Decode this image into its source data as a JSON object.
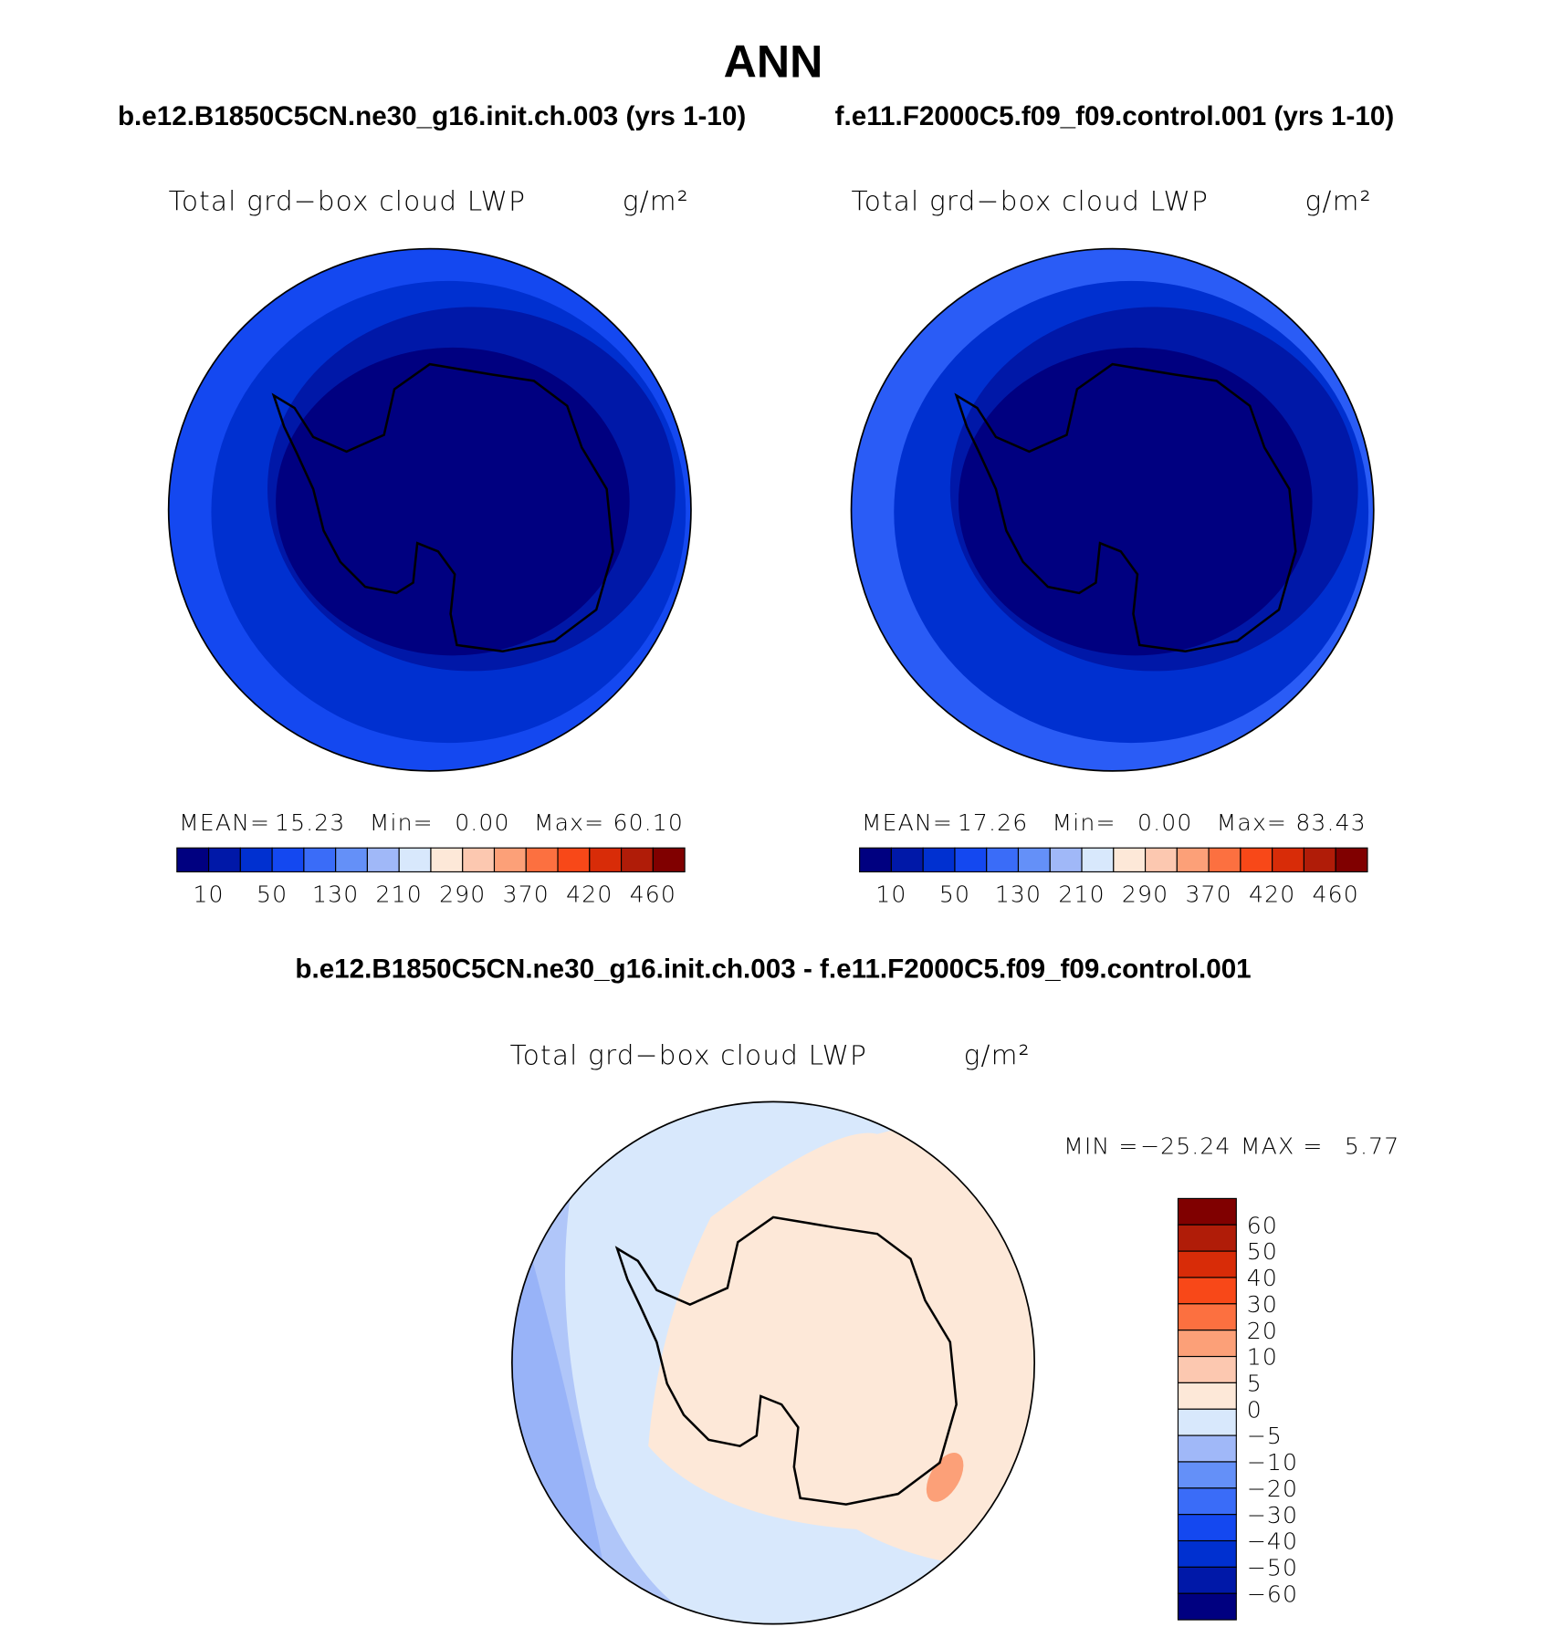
{
  "title": "ANN",
  "panels": [
    {
      "case": "b.e12.B1850C5CN.ne30_g16.init.ch.003 (yrs 1-10)",
      "variable": "Total grd−box cloud LWP",
      "units": "g/m²",
      "stats": {
        "mean_label": "MEAN=",
        "mean": "15.23",
        "min_label": "Min=",
        "min": "0.00",
        "max_label": "Max=",
        "max": "60.10"
      },
      "colorbar_labels": [
        "10",
        "50",
        "130",
        "210",
        "290",
        "370",
        "420",
        "460"
      ]
    },
    {
      "case": "f.e11.F2000C5.f09_f09.control.001 (yrs 1-10)",
      "variable": "Total grd−box cloud LWP",
      "units": "g/m²",
      "stats": {
        "mean_label": "MEAN=",
        "mean": "17.26",
        "min_label": "Min=",
        "min": "0.00",
        "max_label": "Max=",
        "max": "83.43"
      },
      "colorbar_labels": [
        "10",
        "50",
        "130",
        "210",
        "290",
        "370",
        "420",
        "460"
      ]
    }
  ],
  "colorbar_colors": [
    "#000080",
    "#0018a8",
    "#0030d0",
    "#1448f0",
    "#3a6cf8",
    "#6490f8",
    "#a0b8f8",
    "#d8e8fc",
    "#fde8d8",
    "#fcc8b0",
    "#fca078",
    "#fc7040",
    "#f84818",
    "#d82c08",
    "#b01c08",
    "#800000"
  ],
  "difference": {
    "case": "b.e12.B1850C5CN.ne30_g16.init.ch.003 - f.e11.F2000C5.f09_f09.control.001",
    "variable": "Total grd−box cloud LWP",
    "units": "g/m²",
    "stats": {
      "min_label": "MIN =",
      "min": "−25.24",
      "max_label": "MAX =",
      "max": "5.77"
    },
    "colorbar_labels": [
      "60",
      "50",
      "40",
      "30",
      "20",
      "10",
      "5",
      "0",
      "−5",
      "−10",
      "−20",
      "−30",
      "−40",
      "−50",
      "−60"
    ]
  }
}
